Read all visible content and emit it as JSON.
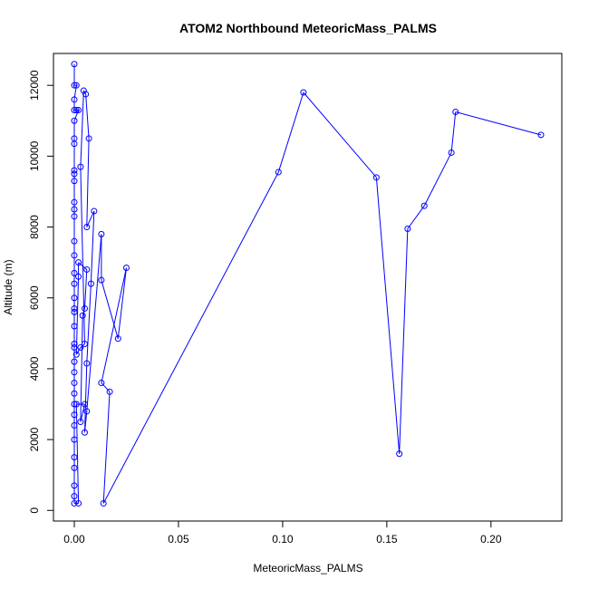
{
  "chart_data": {
    "type": "scatter",
    "title": "ATOM2 Northbound MeteoricMass_PALMS",
    "xlabel": "MeteoricMass_PALMS",
    "ylabel": "Altitude (m)",
    "xlim": [
      -0.01,
      0.234
    ],
    "ylim": [
      -300,
      12900
    ],
    "x_ticks": [
      0.0,
      0.05,
      0.1,
      0.15,
      0.2
    ],
    "x_tick_labels": [
      "0.00",
      "0.05",
      "0.10",
      "0.15",
      "0.20"
    ],
    "y_ticks": [
      0,
      2000,
      4000,
      6000,
      8000,
      10000,
      12000
    ],
    "y_tick_labels": [
      "0",
      "2000",
      "4000",
      "6000",
      "8000",
      "10000",
      "12000"
    ],
    "grid": false,
    "line_style": "lines-and-points",
    "colors": {
      "series": "#0000ff",
      "axis": "#000000",
      "background": "#ffffff"
    },
    "series": [
      {
        "points": [
          [
            0.0,
            12600
          ],
          [
            0.0,
            12000
          ],
          [
            0.001,
            12000
          ],
          [
            0.0,
            11600
          ],
          [
            0.0,
            11300
          ],
          [
            0.001,
            11300
          ],
          [
            0.002,
            11300
          ],
          [
            0.0,
            11000
          ],
          [
            0.0,
            10500
          ],
          [
            0.0,
            10350
          ],
          [
            0.0,
            9600
          ],
          [
            0.0,
            9500
          ],
          [
            0.0,
            9300
          ],
          [
            0.0,
            8700
          ],
          [
            0.0,
            8500
          ],
          [
            0.0,
            8300
          ],
          [
            0.0,
            7600
          ],
          [
            0.0,
            7200
          ],
          [
            0.0,
            6700
          ],
          [
            0.0,
            6400
          ],
          [
            0.0,
            6000
          ],
          [
            0.0,
            5700
          ],
          [
            0.0,
            5600
          ],
          [
            0.0,
            5200
          ],
          [
            0.0,
            4700
          ],
          [
            0.0,
            4600
          ],
          [
            0.0,
            4200
          ],
          [
            0.0,
            3900
          ],
          [
            0.0,
            3600
          ],
          [
            0.0,
            3300
          ],
          [
            0.0,
            3000
          ],
          [
            0.0,
            2700
          ],
          [
            0.0,
            2400
          ],
          [
            0.0,
            2000
          ],
          [
            0.0,
            1500
          ],
          [
            0.0,
            1200
          ],
          [
            0.0,
            700
          ],
          [
            0.0,
            400
          ],
          [
            0.0,
            200
          ],
          [
            0.002,
            200
          ],
          [
            0.001,
            3000
          ],
          [
            0.005,
            3000
          ],
          [
            0.003,
            2500
          ],
          [
            0.004,
            5500
          ],
          [
            0.005,
            5700
          ],
          [
            0.006,
            6800
          ],
          [
            0.002,
            7000
          ],
          [
            0.002,
            6600
          ],
          [
            0.001,
            4400
          ],
          [
            0.003,
            4600
          ],
          [
            0.005,
            4700
          ],
          [
            0.003,
            9700
          ],
          [
            0.0045,
            11850
          ],
          [
            0.0055,
            11750
          ],
          [
            0.007,
            10500
          ],
          [
            0.006,
            8000
          ],
          [
            0.0095,
            8450
          ],
          [
            0.008,
            6400
          ],
          [
            0.006,
            4150
          ],
          [
            0.005,
            2200
          ],
          [
            0.006,
            2800
          ],
          [
            0.013,
            7800
          ],
          [
            0.013,
            6500
          ],
          [
            0.021,
            4850
          ],
          [
            0.025,
            6850
          ],
          [
            0.013,
            3600
          ],
          [
            0.017,
            3350
          ],
          [
            0.014,
            200
          ],
          [
            0.098,
            9550
          ],
          [
            0.11,
            11800
          ],
          [
            0.145,
            9400
          ],
          [
            0.156,
            1600
          ],
          [
            0.16,
            7950
          ],
          [
            0.168,
            8600
          ],
          [
            0.181,
            10100
          ],
          [
            0.183,
            11250
          ],
          [
            0.224,
            10600
          ]
        ]
      }
    ]
  }
}
